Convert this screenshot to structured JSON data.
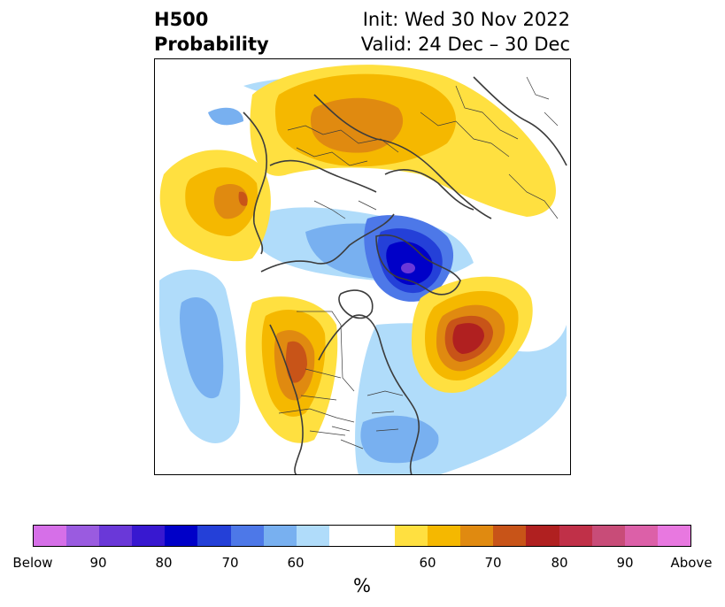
{
  "title": {
    "left_line1": "H500",
    "left_line2": "Probability",
    "right_line1": "Init: Wed 30 Nov 2022",
    "right_line2": "Valid: 24 Dec – 30 Dec"
  },
  "colorbar": {
    "unit": "%",
    "tick_labels": [
      "Below",
      "90",
      "80",
      "70",
      "60",
      "60",
      "70",
      "80",
      "90",
      "Above"
    ],
    "colors": {
      "below": [
        "#d66fe8",
        "#9a5be0",
        "#6a38d8",
        "#3818d0",
        "#0000c8",
        "#2440d8",
        "#4d78e8",
        "#78b0f0",
        "#b0dcfa"
      ],
      "neutral": "#ffffff",
      "above": [
        "#ffe040",
        "#f5b800",
        "#e08a10",
        "#c85418",
        "#b02020",
        "#c03048",
        "#c84c78",
        "#dc60a8",
        "#e878e0"
      ]
    }
  },
  "map": {
    "projection": "north-polar-stereographic",
    "features": [
      "coastlines",
      "country-borders",
      "us-state-borders"
    ]
  }
}
